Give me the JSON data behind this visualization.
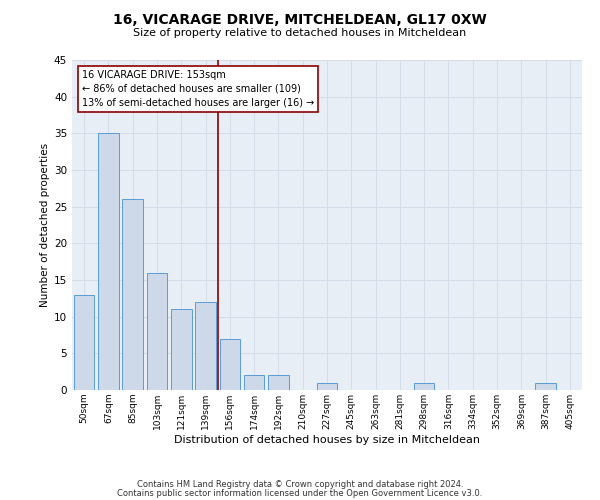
{
  "title": "16, VICARAGE DRIVE, MITCHELDEAN, GL17 0XW",
  "subtitle": "Size of property relative to detached houses in Mitcheldean",
  "xlabel": "Distribution of detached houses by size in Mitcheldean",
  "ylabel": "Number of detached properties",
  "bar_labels": [
    "50sqm",
    "67sqm",
    "85sqm",
    "103sqm",
    "121sqm",
    "139sqm",
    "156sqm",
    "174sqm",
    "192sqm",
    "210sqm",
    "227sqm",
    "245sqm",
    "263sqm",
    "281sqm",
    "298sqm",
    "316sqm",
    "334sqm",
    "352sqm",
    "369sqm",
    "387sqm",
    "405sqm"
  ],
  "bar_values": [
    13,
    35,
    26,
    16,
    11,
    12,
    7,
    2,
    2,
    0,
    1,
    0,
    0,
    0,
    1,
    0,
    0,
    0,
    0,
    1,
    0
  ],
  "bar_color": "#cdd9e8",
  "bar_edge_color": "#5b9bd5",
  "highlight_line_color": "#8b0000",
  "annotation_line1": "16 VICARAGE DRIVE: 153sqm",
  "annotation_line2": "← 86% of detached houses are smaller (109)",
  "annotation_line3": "13% of semi-detached houses are larger (16) →",
  "annotation_box_color": "#ffffff",
  "annotation_box_edge": "#8b0000",
  "ylim": [
    0,
    45
  ],
  "yticks": [
    0,
    5,
    10,
    15,
    20,
    25,
    30,
    35,
    40,
    45
  ],
  "grid_color": "#d3dce8",
  "bg_color": "#e8eef5",
  "footer1": "Contains HM Land Registry data © Crown copyright and database right 2024.",
  "footer2": "Contains public sector information licensed under the Open Government Licence v3.0."
}
